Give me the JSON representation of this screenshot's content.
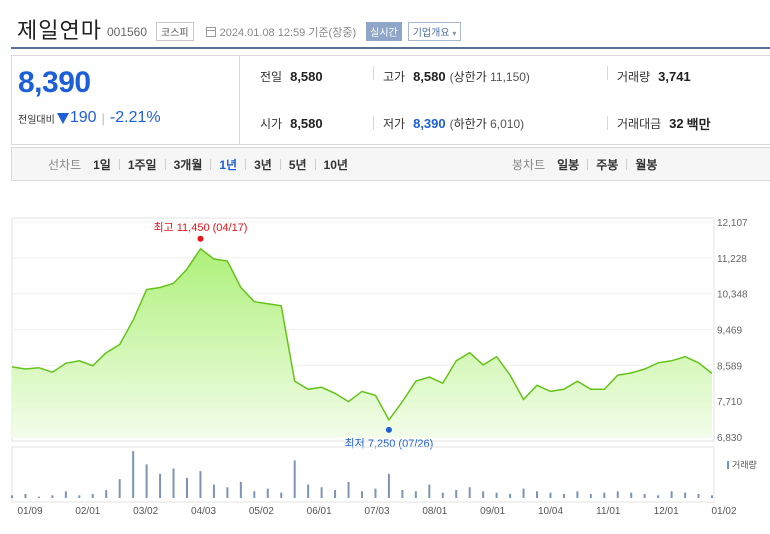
{
  "header": {
    "name": "제일연마",
    "code": "001560",
    "market": "코스피",
    "datetime": "2024.01.08 12:59 기준(장중)",
    "realtime": "실시간",
    "company_info": "기업개요"
  },
  "quote": {
    "price": "8,390",
    "change_label": "전일대비",
    "change_amount": "190",
    "change_percent": "-2.21%",
    "prev_close_label": "전일",
    "prev_close": "8,580",
    "high_label": "고가",
    "high": "8,580",
    "upper_limit_label": "상한가",
    "upper_limit": "11,150",
    "volume_label": "거래량",
    "volume": "3,741",
    "open_label": "시가",
    "open": "8,580",
    "low_label": "저가",
    "low": "8,390",
    "lower_limit_label": "하한가",
    "lower_limit": "6,010",
    "amount_label": "거래대금",
    "amount": "32",
    "amount_unit": "백만"
  },
  "tabs": {
    "line_title": "선차트",
    "line": [
      "1일",
      "1주일",
      "3개월",
      "1년",
      "3년",
      "5년",
      "10년"
    ],
    "active": "1년",
    "candle_title": "봉차트",
    "candle": [
      "일봉",
      "주봉",
      "월봉"
    ]
  },
  "colors": {
    "accent": "#1d5fd8",
    "line": "#63c418",
    "fill_top": "#aef07a",
    "fill_bottom": "#f2fde9",
    "max_dot": "#e8141b",
    "volume": "#7f93b6"
  },
  "chart_data": {
    "type": "area",
    "x_ticks": [
      "01/09",
      "02/01",
      "03/02",
      "04/03",
      "05/02",
      "06/01",
      "07/03",
      "08/01",
      "09/01",
      "10/04",
      "11/01",
      "12/01",
      "01/02"
    ],
    "y_ticks": [
      "12,107",
      "11,228",
      "10,348",
      "9,469",
      "8,589",
      "7,710",
      "6,830"
    ],
    "ylim": [
      6830,
      12107
    ],
    "annotations": {
      "max": "최고 11,450 (04/17)",
      "min": "최저 7,250 (07/26)"
    },
    "volume_label": "거래량",
    "x": [
      "01/09",
      "01/16",
      "01/23",
      "01/30",
      "02/06",
      "02/13",
      "02/20",
      "02/27",
      "03/06",
      "03/13",
      "03/20",
      "03/27",
      "04/03",
      "04/10",
      "04/17",
      "04/24",
      "05/01",
      "05/08",
      "05/15",
      "05/22",
      "05/29",
      "06/05",
      "06/12",
      "06/19",
      "06/26",
      "07/03",
      "07/10",
      "07/17",
      "07/24",
      "07/31",
      "08/07",
      "08/14",
      "08/21",
      "08/28",
      "09/04",
      "09/11",
      "09/18",
      "09/25",
      "10/02",
      "10/09",
      "10/16",
      "10/23",
      "10/30",
      "11/06",
      "11/13",
      "11/20",
      "11/27",
      "12/04",
      "12/11",
      "12/18",
      "12/26",
      "01/02",
      "01/08"
    ],
    "y": [
      8550,
      8500,
      8530,
      8420,
      8640,
      8700,
      8580,
      8900,
      9100,
      9700,
      10450,
      10500,
      10600,
      10950,
      11450,
      11200,
      11150,
      10500,
      10150,
      10100,
      10050,
      8200,
      8000,
      8050,
      7900,
      7700,
      7950,
      7850,
      7250,
      7700,
      8200,
      8300,
      8150,
      8700,
      8900,
      8600,
      8800,
      8350,
      7750,
      8100,
      7950,
      8000,
      8200,
      8000,
      8000,
      8350,
      8400,
      8500,
      8650,
      8700,
      8800,
      8650,
      8390
    ],
    "volume": [
      2,
      3,
      1,
      2,
      5,
      2,
      3,
      6,
      14,
      35,
      25,
      18,
      22,
      15,
      20,
      10,
      8,
      12,
      5,
      7,
      4,
      28,
      10,
      8,
      6,
      12,
      5,
      7,
      18,
      6,
      5,
      10,
      4,
      6,
      8,
      5,
      4,
      3,
      7,
      5,
      4,
      3,
      5,
      3,
      4,
      5,
      4,
      3,
      2,
      5,
      4,
      3,
      2
    ]
  }
}
